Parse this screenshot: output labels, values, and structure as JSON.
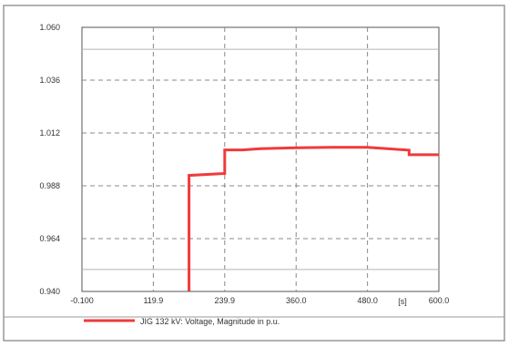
{
  "chart_data": {
    "type": "line",
    "title": "",
    "xlabel": "",
    "ylabel": "",
    "x_unit_label": "[s]",
    "xlim": [
      -0.1,
      600.0
    ],
    "ylim": [
      0.94,
      1.06
    ],
    "x_ticks": [
      "-0.100",
      "119.9",
      "239.9",
      "360.0",
      "480.0",
      "600.0"
    ],
    "y_ticks": [
      "0.940",
      "0.964",
      "0.988",
      "1.012",
      "1.036",
      "1.060"
    ],
    "grid": true,
    "grid_style": "dashed",
    "reference_lines_y": [
      1.05,
      0.95
    ],
    "legend_position": "bottom",
    "series": [
      {
        "name": "JIG 132 kV: Voltage, Magnitude in p.u.",
        "color": "#ee3b3b",
        "x": [
          180,
          180,
          180,
          240,
          240,
          270,
          300,
          360,
          420,
          480,
          550,
          550,
          600
        ],
        "y": [
          0.94,
          0.946,
          0.9927,
          0.9936,
          1.0043,
          1.0043,
          1.0049,
          1.0053,
          1.0055,
          1.0055,
          1.0042,
          1.0021,
          1.0021
        ]
      }
    ]
  }
}
